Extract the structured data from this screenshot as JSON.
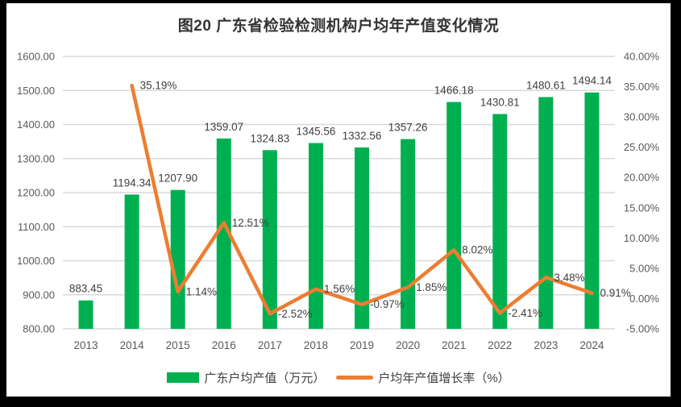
{
  "frame_color": "#000000",
  "chart_data": {
    "type": "combo-bar-line",
    "title": "图20 广东省检验检测机构户均年产值变化情况",
    "categories": [
      "2013",
      "2014",
      "2015",
      "2016",
      "2017",
      "2018",
      "2019",
      "2020",
      "2021",
      "2022",
      "2023",
      "2024"
    ],
    "series": [
      {
        "name": "广东户均产值（万元）",
        "type": "bar",
        "axis": "left",
        "color": "#00B050",
        "values": [
          883.45,
          1194.34,
          1207.9,
          1359.07,
          1324.83,
          1345.56,
          1332.56,
          1357.26,
          1466.18,
          1430.81,
          1480.61,
          1494.14
        ],
        "labels": [
          "883.45",
          "1194.34",
          "1207.90",
          "1359.07",
          "1324.83",
          "1345.56",
          "1332.56",
          "1357.26",
          "1466.18",
          "1430.81",
          "1480.61",
          "1494.14"
        ]
      },
      {
        "name": "户均年产值增长率（%）",
        "type": "line",
        "axis": "right",
        "color": "#ED7D31",
        "values": [
          null,
          35.19,
          1.14,
          12.51,
          -2.52,
          1.56,
          -0.97,
          1.85,
          8.02,
          -2.41,
          3.48,
          0.91
        ],
        "labels": [
          null,
          "35.19%",
          "1.14%",
          "12.51%",
          "-2.52%",
          "1.56%",
          "-0.97%",
          "1.85%",
          "8.02%",
          "-2.41%",
          "3.48%",
          "0.91%"
        ]
      }
    ],
    "left_axis": {
      "min": 800,
      "max": 1600,
      "step": 100,
      "ticks": [
        "1600.00",
        "1500.00",
        "1400.00",
        "1300.00",
        "1200.00",
        "1100.00",
        "1000.00",
        "900.00",
        "800.00"
      ]
    },
    "right_axis": {
      "min": -5,
      "max": 40,
      "step": 5,
      "ticks": [
        "40.00%",
        "35.00%",
        "30.00%",
        "25.00%",
        "20.00%",
        "15.00%",
        "10.00%",
        "5.00%",
        "0.00%",
        "-5.00%"
      ]
    },
    "grid": true,
    "legend_position": "bottom",
    "colors": {
      "gridline": "#D9D9D9",
      "axis_text": "#595959",
      "data_label_text": "#404040",
      "background": "#FFFFFF"
    }
  }
}
